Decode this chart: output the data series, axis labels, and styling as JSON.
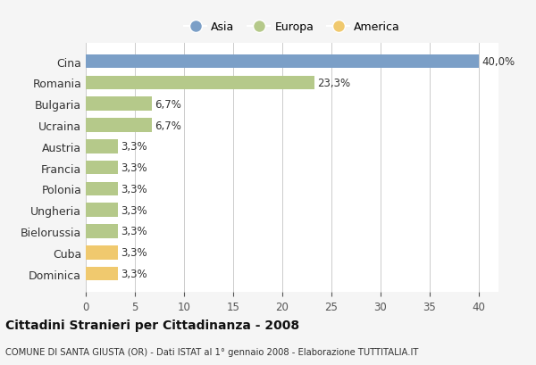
{
  "categories": [
    "Dominica",
    "Cuba",
    "Bielorussia",
    "Ungheria",
    "Polonia",
    "Francia",
    "Austria",
    "Ucraina",
    "Bulgaria",
    "Romania",
    "Cina"
  ],
  "values": [
    3.3,
    3.3,
    3.3,
    3.3,
    3.3,
    3.3,
    3.3,
    6.7,
    6.7,
    23.3,
    40.0
  ],
  "labels": [
    "3,3%",
    "3,3%",
    "3,3%",
    "3,3%",
    "3,3%",
    "3,3%",
    "3,3%",
    "6,7%",
    "6,7%",
    "23,3%",
    "40,0%"
  ],
  "colors": [
    "#f0c96e",
    "#f0c96e",
    "#b5c98a",
    "#b5c98a",
    "#b5c98a",
    "#b5c98a",
    "#b5c98a",
    "#b5c98a",
    "#b5c98a",
    "#b5c98a",
    "#7b9fc7"
  ],
  "legend_labels": [
    "Asia",
    "Europa",
    "America"
  ],
  "legend_colors": [
    "#7b9fc7",
    "#b5c98a",
    "#f0c96e"
  ],
  "title": "Cittadini Stranieri per Cittadinanza - 2008",
  "subtitle": "COMUNE DI SANTA GIUSTA (OR) - Dati ISTAT al 1° gennaio 2008 - Elaborazione TUTTITALIA.IT",
  "xlim": [
    0,
    42
  ],
  "xticks": [
    0,
    5,
    10,
    15,
    20,
    25,
    30,
    35,
    40
  ],
  "background_color": "#f5f5f5",
  "bar_background": "#ffffff"
}
